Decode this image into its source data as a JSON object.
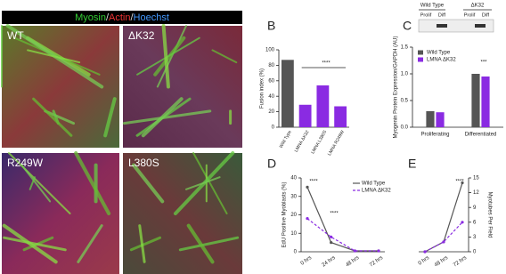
{
  "stain_label": {
    "myosin": "Myosin",
    "sep1": "/",
    "actin": "Actin",
    "sep2": "/",
    "hoechst": "Hoechst"
  },
  "images": [
    {
      "label": "WT"
    },
    {
      "label": "ΔK32"
    },
    {
      "label": "R249W"
    },
    {
      "label": "L380S"
    }
  ],
  "blot": {
    "groups": [
      "Wild Type",
      "ΔK32"
    ],
    "lanes": [
      "Prolif",
      "Diff",
      "Prolif",
      "Diff"
    ]
  },
  "chart_data": [
    {
      "type": "bar",
      "panel": "B",
      "ylabel": "Fusion index (%)",
      "categories": [
        "Wild Type",
        "LMNA ΔK32",
        "LMNA L380S",
        "LMNA R249W"
      ],
      "values": [
        87,
        29,
        54,
        27
      ],
      "colors": [
        "#555555",
        "#8a2be2",
        "#8a2be2",
        "#8a2be2"
      ],
      "ylim": [
        0,
        100
      ],
      "yticks": [
        0,
        20,
        40,
        60,
        80,
        100
      ],
      "annotations": [
        "****"
      ]
    },
    {
      "type": "grouped_bar",
      "panel": "C",
      "ylabel": "Myogenin Protein Expression/GAPDH (AU)",
      "categories": [
        "Proliferating",
        "Differentiated"
      ],
      "series": [
        {
          "name": "Wild Type",
          "color": "#555555",
          "values": [
            0.3,
            1.0
          ]
        },
        {
          "name": "LMNA ΔK32",
          "color": "#8a2be2",
          "values": [
            0.28,
            0.95
          ]
        }
      ],
      "ylim": [
        0,
        1.5
      ],
      "yticks": [
        {
          "value": 0,
          "label": "0.0"
        },
        {
          "value": 0.5,
          "label": "0.5"
        },
        {
          "value": 1,
          "label": "1.0"
        },
        {
          "value": 1.5,
          "label": "1.5"
        }
      ],
      "legend": "upper-left",
      "annotations": [
        "***"
      ]
    },
    {
      "type": "line",
      "panel": "D",
      "ylabel": "EdU Positive Myoblasts (%)",
      "axis_side": "left",
      "categories": [
        "0 hrs",
        "24 hrs",
        "48 hrs",
        "72 hrs"
      ],
      "series": [
        {
          "name": "Wild Type",
          "color": "#555555",
          "dash": false,
          "values": [
            35,
            5,
            0.5,
            0.5
          ]
        },
        {
          "name": "LMNA ΔK32",
          "color": "#8a2be2",
          "dash": true,
          "values": [
            18,
            8,
            0.5,
            0.5
          ]
        }
      ],
      "ylim": [
        0,
        40
      ],
      "yticks": [
        0,
        10,
        20,
        30,
        40
      ],
      "legend": "upper-right",
      "annotations": [
        "****",
        "****"
      ]
    },
    {
      "type": "line",
      "panel": "E",
      "ylabel": "Myotubes Per Field",
      "axis_side": "right",
      "categories": [
        "0 hrs",
        "48 hrs",
        "72 hrs"
      ],
      "series": [
        {
          "name": "Wild Type",
          "color": "#555555",
          "dash": false,
          "values": [
            0,
            2,
            14
          ]
        },
        {
          "name": "LMNA ΔK32",
          "color": "#8a2be2",
          "dash": true,
          "values": [
            0,
            2,
            6
          ]
        }
      ],
      "ylim": [
        0,
        15
      ],
      "yticks": [
        0,
        3,
        6,
        9,
        12,
        15
      ],
      "annotations": [
        "****"
      ]
    }
  ]
}
